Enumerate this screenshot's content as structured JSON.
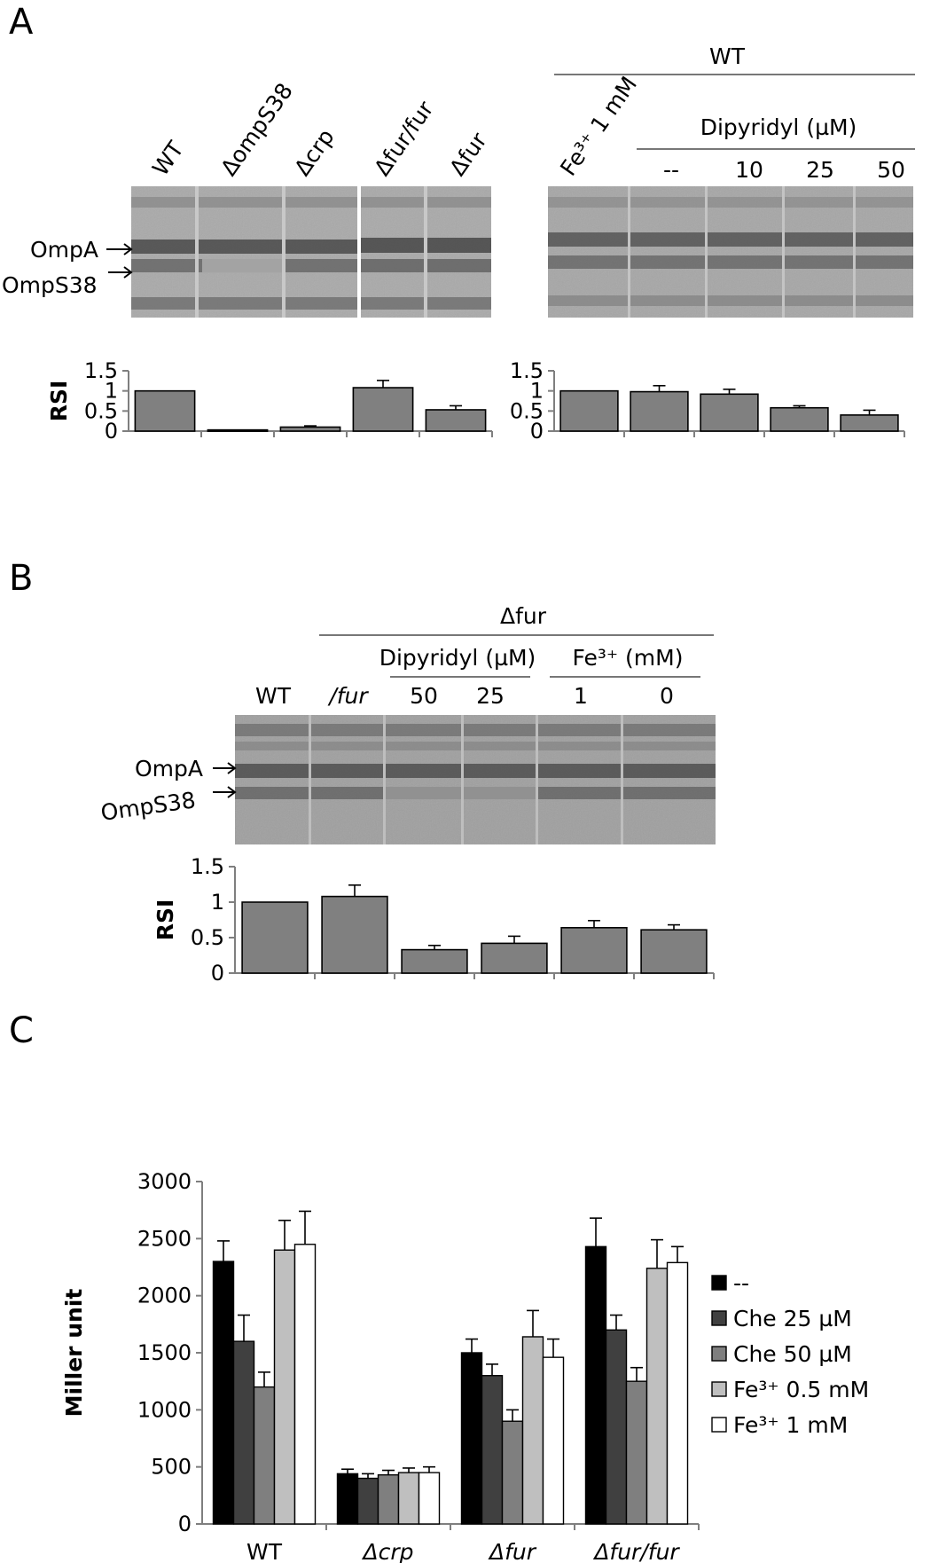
{
  "panels": {
    "a": "A",
    "b": "B",
    "c": "C"
  },
  "panel_a": {
    "left_lanes": [
      "WT",
      "ΔompS38",
      "Δcrp",
      "Δfur/fur",
      "Δfur"
    ],
    "band_labels": [
      "OmpA",
      "OmpS38"
    ],
    "right_header": "WT",
    "right_fe_label": "Fe³⁺ 1 mM",
    "right_dip_label": "Dipyridyl (µM)",
    "right_dip_lanes": [
      "--",
      "10",
      "25",
      "50"
    ]
  },
  "panel_b": {
    "header": "Δfur",
    "lanes": [
      "WT",
      "/fur",
      "50",
      "25",
      "1",
      "0"
    ],
    "dip_label": "Dipyridyl (µM)",
    "fe_label": "Fe³⁺ (mM)",
    "band_labels": [
      "OmpA",
      "OmpS38"
    ]
  },
  "chart_data": [
    {
      "type": "bar",
      "id": "A-left",
      "categories": [
        "WT",
        "ΔompS38",
        "Δcrp",
        "Δfur/fur",
        "Δfur"
      ],
      "values": [
        1.0,
        0.03,
        0.1,
        1.08,
        0.53
      ],
      "errors": [
        0.0,
        0.0,
        0.03,
        0.18,
        0.1
      ],
      "ylabel": "RSI",
      "ylim": [
        0,
        1.5
      ],
      "yticks": [
        "0",
        "0.5",
        "1",
        "1.5"
      ],
      "color": "#808080"
    },
    {
      "type": "bar",
      "id": "A-right",
      "categories": [
        "Fe³⁺ 1 mM",
        "--",
        "10",
        "25",
        "50"
      ],
      "values": [
        1.0,
        0.98,
        0.92,
        0.58,
        0.4
      ],
      "errors": [
        0.0,
        0.15,
        0.12,
        0.05,
        0.12
      ],
      "ylim": [
        0,
        1.5
      ],
      "yticks": [
        "0",
        "0.5",
        "1",
        "1.5"
      ],
      "color": "#808080"
    },
    {
      "type": "bar",
      "id": "B",
      "categories": [
        "WT",
        "/fur",
        "50",
        "25",
        "1",
        "0"
      ],
      "values": [
        1.0,
        1.08,
        0.33,
        0.42,
        0.64,
        0.61
      ],
      "errors": [
        0.0,
        0.16,
        0.06,
        0.1,
        0.1,
        0.07
      ],
      "ylabel": "RSI",
      "ylim": [
        0,
        1.5
      ],
      "yticks": [
        "0",
        "0.5",
        "1",
        "1.5"
      ],
      "color": "#808080"
    },
    {
      "type": "bar",
      "id": "C",
      "categories": [
        "WT",
        "Δcrp",
        "Δfur",
        "Δfur/fur"
      ],
      "ylabel": "Miller unit",
      "ylim": [
        0,
        3000
      ],
      "yticks": [
        "0",
        "500",
        "1000",
        "1500",
        "2000",
        "2500",
        "3000"
      ],
      "series": [
        {
          "name": "--",
          "color": "#000000",
          "values": [
            2300,
            440,
            1500,
            2430
          ],
          "errors": [
            180,
            40,
            120,
            250
          ]
        },
        {
          "name": "Che 25 µM",
          "color": "#404040",
          "values": [
            1600,
            400,
            1300,
            1700
          ],
          "errors": [
            230,
            40,
            100,
            130
          ]
        },
        {
          "name": "Che 50 µM",
          "color": "#7f7f7f",
          "values": [
            1200,
            430,
            900,
            1250
          ],
          "errors": [
            130,
            40,
            100,
            120
          ]
        },
        {
          "name": "Fe³⁺ 0.5 mM",
          "color": "#bfbfbf",
          "values": [
            2400,
            450,
            1640,
            2240
          ],
          "errors": [
            260,
            40,
            230,
            250
          ]
        },
        {
          "name": "Fe³⁺ 1 mM",
          "color": "#ffffff",
          "values": [
            2450,
            450,
            1460,
            2290
          ],
          "errors": [
            290,
            50,
            160,
            140
          ]
        }
      ],
      "legend": "right"
    }
  ]
}
